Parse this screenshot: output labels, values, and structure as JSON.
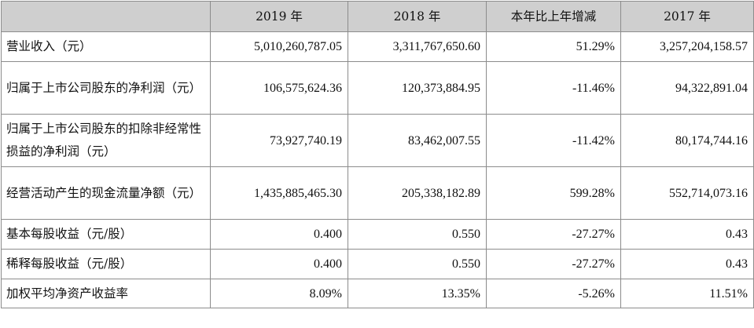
{
  "table": {
    "headers": [
      "",
      "2019 年",
      "2018 年",
      "本年比上年增减",
      "2017 年"
    ],
    "rows": [
      {
        "label": "营业收入（元）",
        "values": [
          "5,010,260,787.05",
          "3,311,767,650.60",
          "51.29%",
          "3,257,204,158.57"
        ]
      },
      {
        "label": "归属于上市公司股东的净利润（元）",
        "values": [
          "106,575,624.36",
          "120,373,884.95",
          "-11.46%",
          "94,322,891.04"
        ]
      },
      {
        "label": "归属于上市公司股东的扣除非经常性损益的净利润（元）",
        "values": [
          "73,927,740.19",
          "83,462,007.55",
          "-11.42%",
          "80,174,744.16"
        ]
      },
      {
        "label": "经营活动产生的现金流量净额（元）",
        "values": [
          "1,435,885,465.30",
          "205,338,182.89",
          "599.28%",
          "552,714,073.16"
        ]
      },
      {
        "label": "基本每股收益（元/股）",
        "values": [
          "0.400",
          "0.550",
          "-27.27%",
          "0.43"
        ]
      },
      {
        "label": "稀释每股收益（元/股）",
        "values": [
          "0.400",
          "0.550",
          "-27.27%",
          "0.43"
        ]
      },
      {
        "label": "加权平均净资产收益率",
        "values": [
          "8.09%",
          "13.35%",
          "-5.26%",
          "11.51%"
        ]
      }
    ]
  }
}
